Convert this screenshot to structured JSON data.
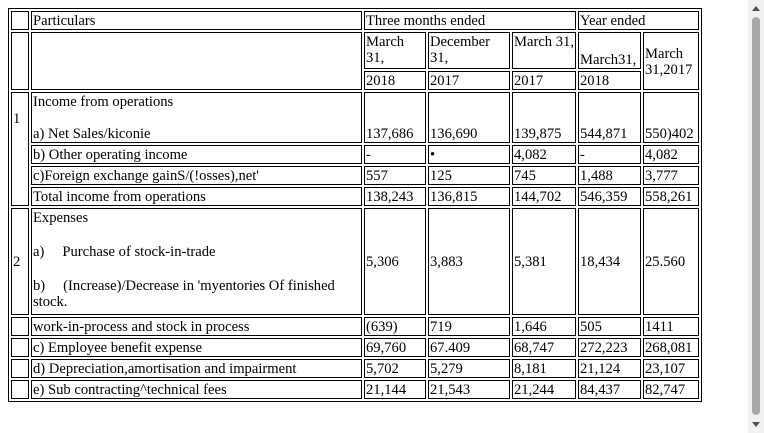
{
  "header": {
    "particulars": "Particulars",
    "three_months": "Three months ended",
    "year_ended": "Year ended",
    "col1_month": "March 31,",
    "col2_month": "December 31,",
    "col3_month": "March 31,",
    "col4_month": "March31,",
    "col5_month": "March 31,2017",
    "col1_year": "2018",
    "col2_year": "2017",
    "col3_year": "2017",
    "col4_year": "2018"
  },
  "section1": {
    "no": "1",
    "heading": "Income from operations",
    "rows": [
      {
        "label": "a) Net Sales/kiconie",
        "values": [
          "137,686",
          "136,690",
          "139,875",
          "544,871",
          "550)402"
        ]
      },
      {
        "label": "b) Other operating income",
        "values": [
          "-",
          "•",
          "4,082",
          "-",
          "4,082"
        ]
      },
      {
        "label": "c)Foreign exchange gainS/(!osses),net'",
        "values": [
          "557",
          "125",
          "745",
          "1,488",
          "3,777"
        ]
      },
      {
        "label": "Total income from operations",
        "values": [
          "138,243",
          "136,815",
          "144,702",
          "546,359",
          "558,261"
        ]
      }
    ]
  },
  "section2": {
    "no": "2",
    "heading": "Expenses",
    "item_a_prefix": "a)",
    "item_a_text": "Purchase of stock-in-trade",
    "item_b_prefix": "b)",
    "item_b_text": "(Increase)/Decrease in 'myentories Of finished stock.",
    "first_values": [
      "5,306",
      "3,883",
      "5,381",
      "18,434",
      "25.560"
    ],
    "rows": [
      {
        "label": "work-in-process and stock in process",
        "values": [
          "(639)",
          "719",
          "1,646",
          "505",
          "1411"
        ]
      },
      {
        "label": "c) Employee benefit expense",
        "values": [
          "69,760",
          "67.409",
          "68,747",
          "272,223",
          "268,081"
        ]
      },
      {
        "label": "d) Depreciation,amortisation and impairment",
        "values": [
          "5,702",
          "5,279",
          "8,181",
          "21,124",
          "23,107"
        ]
      },
      {
        "label": "e) Sub contracting^technical fees",
        "values": [
          "21,144",
          "21,543",
          "21,244",
          "84,437",
          "82,747"
        ]
      }
    ]
  }
}
